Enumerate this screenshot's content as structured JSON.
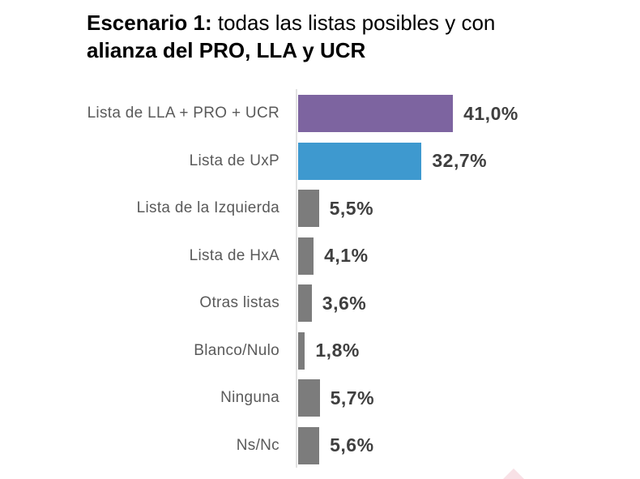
{
  "title": {
    "prefix_bold": "Escenario 1:",
    "rest_regular": " todas las listas posibles y con",
    "line2_bold": "alianza del PRO, LLA y UCR"
  },
  "chart_data": {
    "type": "bar",
    "orientation": "horizontal",
    "title": "Escenario 1: todas las listas posibles y con alianza del PRO, LLA y UCR",
    "categories": [
      "Lista de LLA + PRO + UCR",
      "Lista de UxP",
      "Lista de la Izquierda",
      "Lista de HxA",
      "Otras listas",
      "Blanco/Nulo",
      "Ninguna",
      "Ns/Nc"
    ],
    "values": [
      41.0,
      32.7,
      5.5,
      4.1,
      3.6,
      1.8,
      5.7,
      5.6
    ],
    "value_labels": [
      "41,0%",
      "32,7%",
      "5,5%",
      "4,1%",
      "3,6%",
      "1,8%",
      "5,7%",
      "5,6%"
    ],
    "bar_colors": [
      "#7d64a0",
      "#3e99cf",
      "#7c7c7c",
      "#7c7c7c",
      "#7c7c7c",
      "#7c7c7c",
      "#7c7c7c",
      "#7c7c7c"
    ],
    "xlim": [
      0,
      45
    ],
    "grid": false,
    "legend": false,
    "decimal_separator": ","
  },
  "colors": {
    "purple_bar": "#7d64a0",
    "blue_bar": "#3e99cf",
    "gray_bar": "#7c7c7c",
    "axis_line": "#e2e2e2",
    "category_text": "#5a5a5a",
    "value_text": "#3f3f3f",
    "title_text": "#000000",
    "decor_triangle": "#f8e1e6"
  }
}
